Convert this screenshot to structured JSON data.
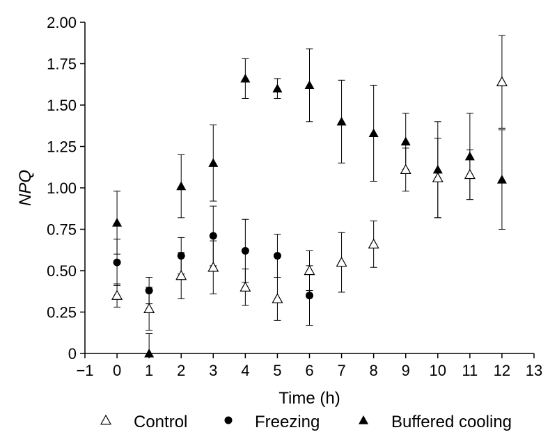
{
  "chart_data": {
    "type": "scatter",
    "title": "",
    "xlabel": "Time (h)",
    "ylabel": "NPQ",
    "xlim": [
      -1,
      13
    ],
    "ylim": [
      0,
      2.0
    ],
    "x_ticks": [
      -1,
      0,
      1,
      2,
      3,
      4,
      5,
      6,
      7,
      8,
      9,
      10,
      11,
      12,
      13
    ],
    "x_tick_labels": [
      "−1",
      "0",
      "1",
      "2",
      "3",
      "4",
      "5",
      "6",
      "7",
      "8",
      "9",
      "10",
      "11",
      "12",
      "13"
    ],
    "y_ticks": [
      0,
      0.25,
      0.5,
      0.75,
      1.0,
      1.25,
      1.5,
      1.75,
      2.0
    ],
    "y_tick_labels": [
      "0",
      "0.25",
      "0.50",
      "0.75",
      "1.00",
      "1.25",
      "1.50",
      "1.75",
      "2.00"
    ],
    "grid": false,
    "legend_position": "bottom",
    "error_bars": true,
    "series": [
      {
        "name": "Control",
        "marker": "triangle-open",
        "color": "#000000",
        "x": [
          0,
          1,
          2,
          3,
          4,
          5,
          6,
          7,
          8,
          9,
          10,
          11,
          12
        ],
        "y": [
          0.35,
          0.27,
          0.47,
          0.52,
          0.4,
          0.33,
          0.5,
          0.55,
          0.66,
          1.11,
          1.06,
          1.08,
          1.64
        ],
        "err": [
          0.07,
          0.13,
          0.14,
          0.16,
          0.11,
          0.13,
          0.12,
          0.18,
          0.14,
          0.13,
          0.24,
          0.15,
          0.28
        ]
      },
      {
        "name": "Freezing",
        "marker": "circle-filled",
        "color": "#000000",
        "x": [
          0,
          1,
          2,
          3,
          4,
          5,
          6
        ],
        "y": [
          0.55,
          0.38,
          0.59,
          0.71,
          0.62,
          0.59,
          0.35
        ],
        "err": [
          0.14,
          0.08,
          0.11,
          0.18,
          0.19,
          0.13,
          0.18
        ]
      },
      {
        "name": "Buffered cooling",
        "marker": "triangle-filled",
        "color": "#000000",
        "x": [
          0,
          1,
          2,
          3,
          4,
          5,
          6,
          7,
          8,
          9,
          10,
          11,
          12
        ],
        "y": [
          0.79,
          0.0,
          1.01,
          1.15,
          1.66,
          1.6,
          1.62,
          1.4,
          1.33,
          1.28,
          1.11,
          1.19,
          1.05
        ],
        "err": [
          0.19,
          0.12,
          0.19,
          0.23,
          0.12,
          0.06,
          0.22,
          0.25,
          0.29,
          0.17,
          0.29,
          0.26,
          0.3
        ]
      }
    ]
  }
}
